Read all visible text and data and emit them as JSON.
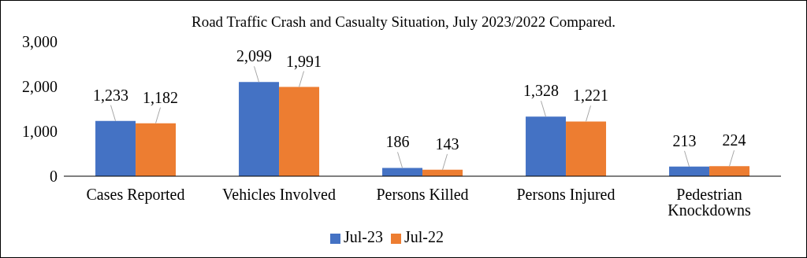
{
  "chart_data": {
    "type": "bar",
    "title": "Road Traffic Crash and Casualty Situation, July 2023/2022 Compared.",
    "categories": [
      "Cases Reported",
      "Vehicles Involved",
      "Persons Killed",
      "Persons Injured",
      "Pedestrian Knockdowns"
    ],
    "series": [
      {
        "name": "Jul-23",
        "color": "#4472c4",
        "values": [
          1233,
          2099,
          186,
          1328,
          213
        ],
        "value_labels": [
          "1,233",
          "2,099",
          "186",
          "1,328",
          "213"
        ]
      },
      {
        "name": "Jul-22",
        "color": "#ed7d31",
        "values": [
          1182,
          1991,
          143,
          1221,
          224
        ],
        "value_labels": [
          "1,182",
          "1,991",
          "143",
          "1,221",
          "224"
        ]
      }
    ],
    "ylim": [
      0,
      3000
    ],
    "yticks": [
      0,
      {
        "value": 1000,
        "label": "1,000"
      },
      {
        "value": 2000,
        "label": "2,000"
      },
      {
        "value": 3000,
        "label": "3,000"
      }
    ],
    "grid": false,
    "legend": "bottom"
  }
}
